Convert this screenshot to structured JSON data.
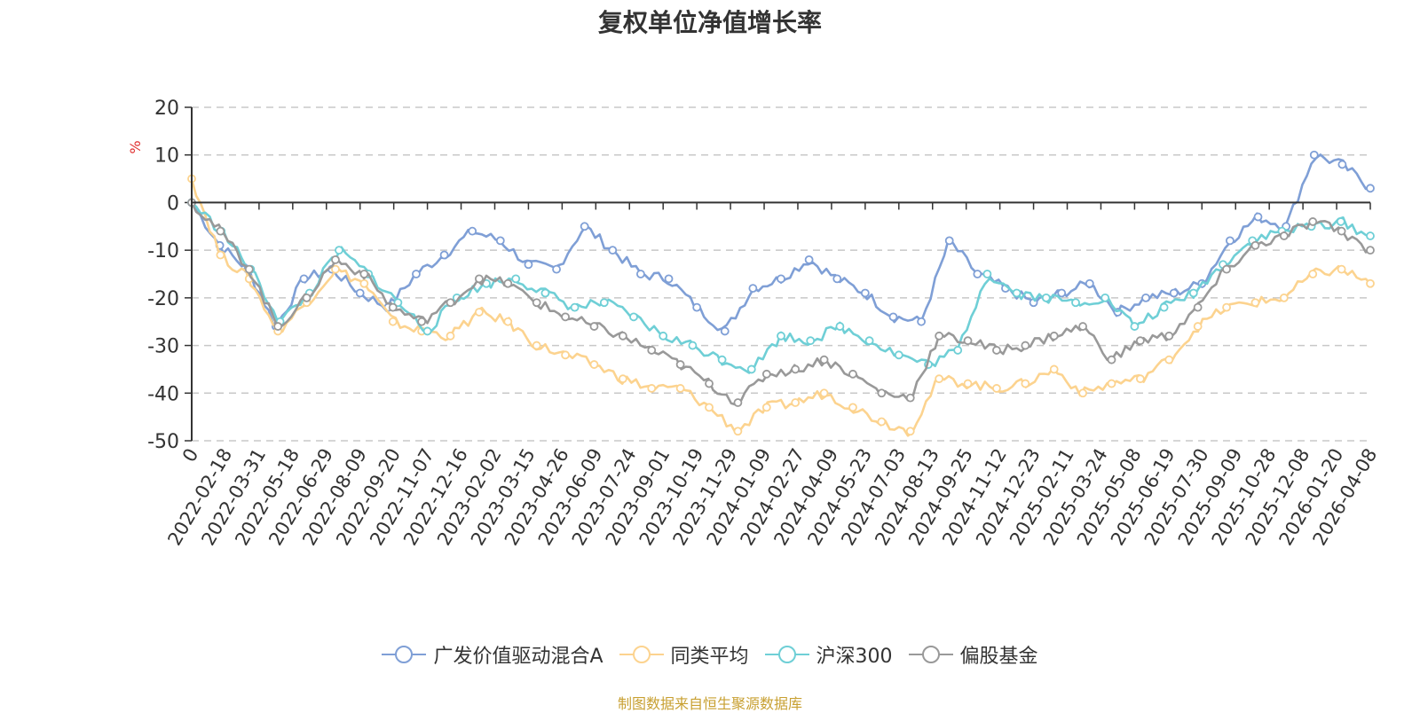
{
  "chart_data": {
    "type": "line",
    "title": "复权单位净值增长率",
    "ylabel": "%",
    "ylim": [
      -50,
      20
    ],
    "yticks": [
      "20",
      "10",
      "0",
      "-10",
      "-20",
      "-30",
      "-40",
      "-50"
    ],
    "x_tick_labels": [
      "0",
      "2022-02-18",
      "2022-03-31",
      "2022-05-18",
      "2022-06-29",
      "2022-08-09",
      "2022-09-20",
      "2022-11-07",
      "2022-12-16",
      "2023-02-02",
      "2023-03-15",
      "2023-04-26",
      "2023-06-09",
      "2023-07-24",
      "2023-09-01",
      "2023-10-19",
      "2023-11-29",
      "2024-01-09",
      "2024-02-27",
      "2024-04-09",
      "2024-05-23",
      "2024-07-03",
      "2024-08-13",
      "2024-09-25",
      "2024-11-12",
      "2024-12-23",
      "2025-02-11",
      "2025-03-24",
      "2025-05-08",
      "2025-06-19",
      "2025-07-30",
      "2025-09-09",
      "2025-10-28",
      "2025-12-08",
      "2026-01-20",
      "2026-04-08"
    ],
    "series": [
      {
        "name": "广发价值驱动混合A",
        "color": "#7f9fd6",
        "values": [
          0,
          -9,
          -14,
          -26,
          -16,
          -14,
          -19,
          -22,
          -15,
          -11,
          -6,
          -8,
          -13,
          -14,
          -5,
          -10,
          -15,
          -16,
          -22,
          -27,
          -18,
          -16,
          -12,
          -16,
          -19,
          -24,
          -25,
          -8,
          -15,
          -18,
          -21,
          -19,
          -17,
          -23,
          -20,
          -19,
          -17,
          -8,
          -3,
          -5,
          10,
          8,
          3
        ]
      },
      {
        "name": "同类平均",
        "color": "#fcd38f",
        "values": [
          5,
          -11,
          -16,
          -27,
          -21,
          -14,
          -17,
          -25,
          -27,
          -28,
          -23,
          -25,
          -30,
          -32,
          -34,
          -37,
          -39,
          -39,
          -43,
          -48,
          -43,
          -42,
          -40,
          -43,
          -46,
          -48,
          -37,
          -38,
          -39,
          -38,
          -35,
          -40,
          -38,
          -37,
          -33,
          -26,
          -22,
          -21,
          -20,
          -15,
          -14,
          -17
        ]
      },
      {
        "name": "沪深300",
        "color": "#6fcfd6",
        "values": [
          0,
          -6,
          -14,
          -25,
          -19,
          -10,
          -15,
          -21,
          -27,
          -20,
          -17,
          -16,
          -19,
          -22,
          -21,
          -24,
          -28,
          -30,
          -33,
          -35,
          -28,
          -29,
          -26,
          -29,
          -32,
          -34,
          -31,
          -15,
          -19,
          -20,
          -21,
          -20,
          -26,
          -22,
          -19,
          -13,
          -8,
          -6,
          -5,
          -4,
          -7
        ]
      },
      {
        "name": "偏股基金",
        "color": "#999999",
        "values": [
          0,
          -6,
          -14,
          -26,
          -20,
          -12,
          -15,
          -22,
          -25,
          -21,
          -16,
          -17,
          -21,
          -24,
          -26,
          -28,
          -31,
          -34,
          -38,
          -42,
          -36,
          -35,
          -33,
          -36,
          -40,
          -41,
          -28,
          -29,
          -31,
          -30,
          -28,
          -26,
          -33,
          -29,
          -28,
          -22,
          -14,
          -9,
          -7,
          -4,
          -6,
          -10
        ]
      }
    ]
  },
  "legend": [
    "广发价值驱动混合A",
    "同类平均",
    "沪深300",
    "偏股基金"
  ],
  "source": "制图数据来自恒生聚源数据库"
}
